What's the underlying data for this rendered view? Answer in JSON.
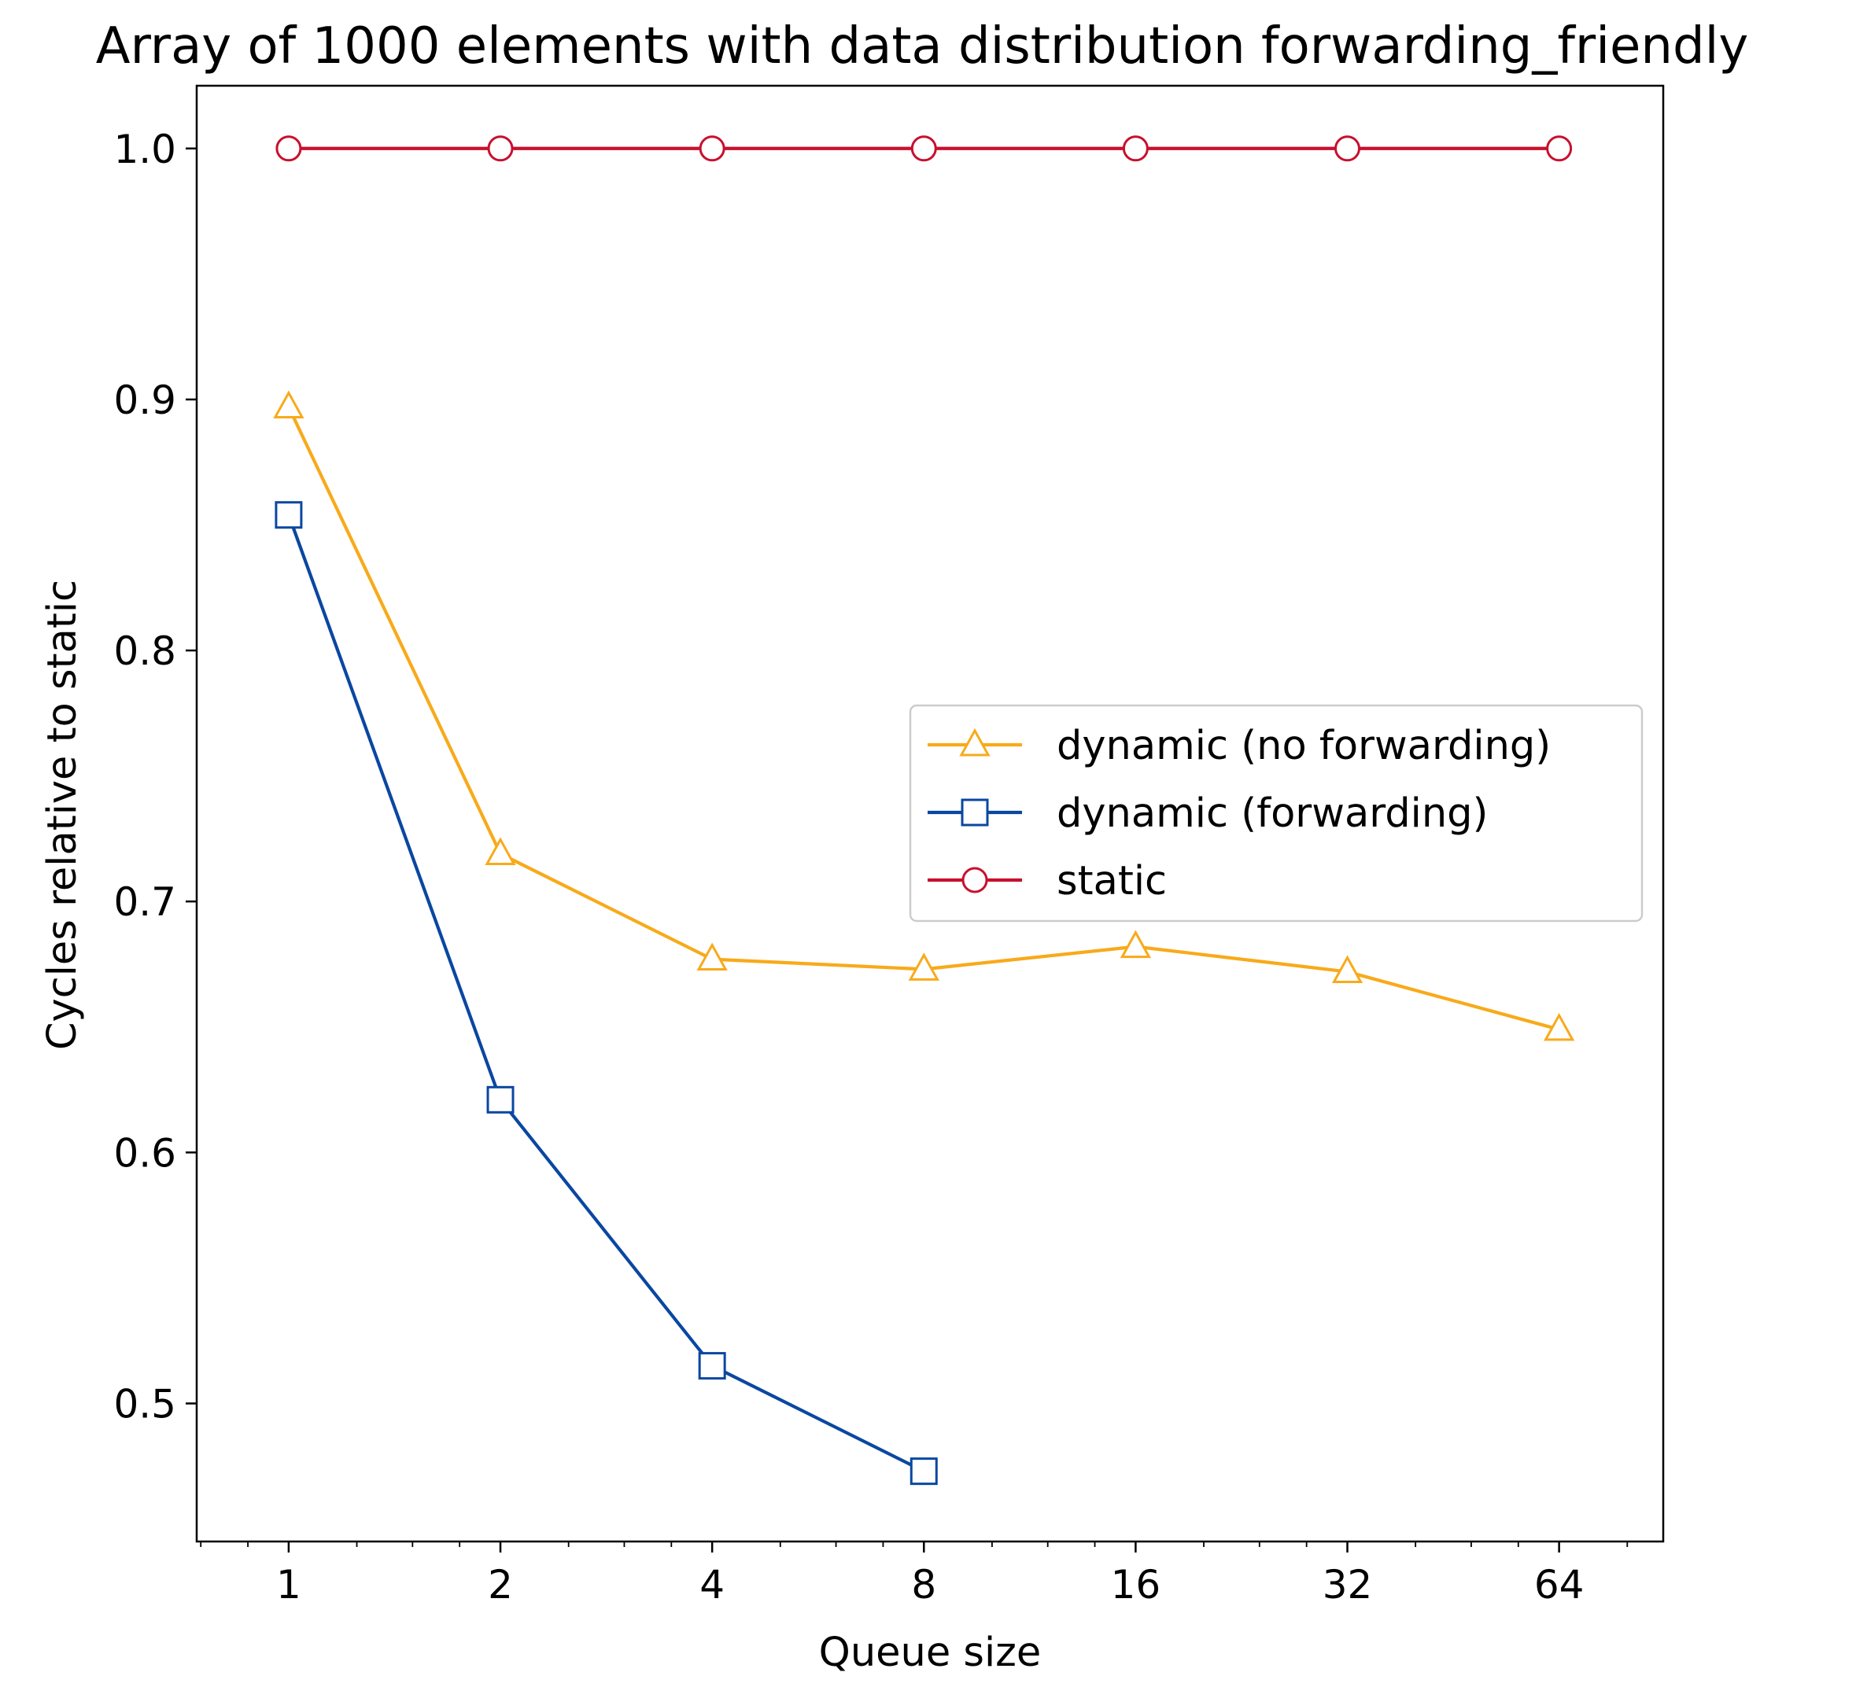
{
  "chart_data": {
    "type": "line",
    "title": "Array of 1000 elements with data distribution forwarding_friendly",
    "xlabel": "Queue size",
    "ylabel": "Cycles relative to static",
    "x_scale": "log2",
    "x_ticks": [
      1,
      2,
      4,
      8,
      16,
      32,
      64
    ],
    "x_tick_labels": [
      "1",
      "2",
      "4",
      "8",
      "16",
      "32",
      "64"
    ],
    "y_ticks": [
      0.5,
      0.6,
      0.7,
      0.8,
      0.9,
      1.0
    ],
    "y_tick_labels": [
      "0.5",
      "0.6",
      "0.7",
      "0.8",
      "0.9",
      "1.0"
    ],
    "xlim": [
      0.74,
      90
    ],
    "ylim": [
      0.445,
      1.025
    ],
    "grid": false,
    "legend_position": "center-right",
    "series": [
      {
        "name": "dynamic (no forwarding)",
        "marker": "triangle",
        "color": "#F8AA1A",
        "x": [
          1,
          2,
          4,
          8,
          16,
          32,
          64
        ],
        "y": [
          0.897,
          0.719,
          0.677,
          0.673,
          0.682,
          0.672,
          0.649
        ]
      },
      {
        "name": "dynamic (forwarding)",
        "marker": "square",
        "color": "#0A47A1",
        "x": [
          1,
          2,
          4,
          8
        ],
        "y": [
          0.854,
          0.621,
          0.515,
          0.473
        ]
      },
      {
        "name": "static",
        "marker": "circle",
        "color": "#C8102E",
        "x": [
          1,
          2,
          4,
          8,
          16,
          32,
          64
        ],
        "y": [
          1.0,
          1.0,
          1.0,
          1.0,
          1.0,
          1.0,
          1.0
        ]
      }
    ]
  }
}
